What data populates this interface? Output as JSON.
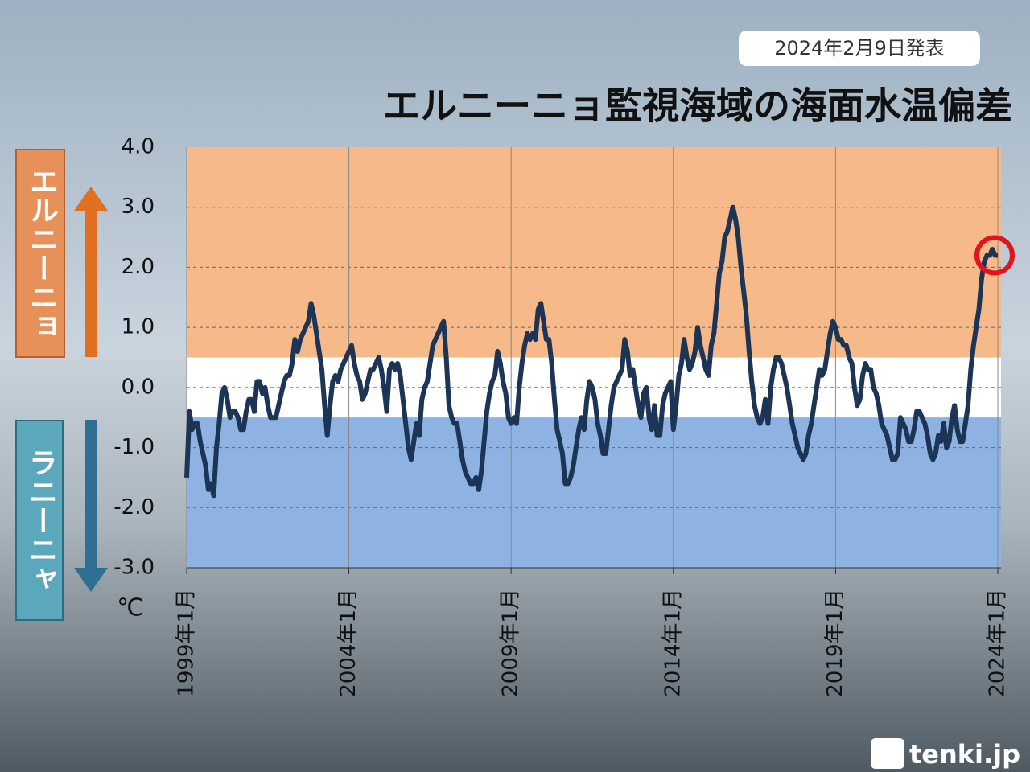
{
  "chart_data": {
    "type": "line",
    "title": "エルニーニョ監視海域の海面水温偏差",
    "subtitle": "2024年2月9日発表",
    "y_unit": "℃",
    "side_labels": {
      "upper": "エルニーニョ",
      "lower": "ラニーニャ"
    },
    "logo": "tenki.jp",
    "x": [
      "1999-01",
      "1999-02",
      "1999-03",
      "1999-04",
      "1999-05",
      "1999-06",
      "1999-07",
      "1999-08",
      "1999-09",
      "1999-10",
      "1999-11",
      "1999-12",
      "2000-01",
      "2000-02",
      "2000-03",
      "2000-04",
      "2000-05",
      "2000-06",
      "2000-07",
      "2000-08",
      "2000-09",
      "2000-10",
      "2000-11",
      "2000-12",
      "2001-01",
      "2001-02",
      "2001-03",
      "2001-04",
      "2001-05",
      "2001-06",
      "2001-07",
      "2001-08",
      "2001-09",
      "2001-10",
      "2001-11",
      "2001-12",
      "2002-01",
      "2002-02",
      "2002-03",
      "2002-04",
      "2002-05",
      "2002-06",
      "2002-07",
      "2002-08",
      "2002-09",
      "2002-10",
      "2002-11",
      "2002-12",
      "2003-01",
      "2003-02",
      "2003-03",
      "2003-04",
      "2003-05",
      "2003-06",
      "2003-07",
      "2003-08",
      "2003-09",
      "2003-10",
      "2003-11",
      "2003-12",
      "2004-01",
      "2004-02",
      "2004-03",
      "2004-04",
      "2004-05",
      "2004-06",
      "2004-07",
      "2004-08",
      "2004-09",
      "2004-10",
      "2004-11",
      "2004-12",
      "2005-01",
      "2005-02",
      "2005-03",
      "2005-04",
      "2005-05",
      "2005-06",
      "2005-07",
      "2005-08",
      "2005-09",
      "2005-10",
      "2005-11",
      "2005-12",
      "2006-01",
      "2006-02",
      "2006-03",
      "2006-04",
      "2006-05",
      "2006-06",
      "2006-07",
      "2006-08",
      "2006-09",
      "2006-10",
      "2006-11",
      "2006-12",
      "2007-01",
      "2007-02",
      "2007-03",
      "2007-04",
      "2007-05",
      "2007-06",
      "2007-07",
      "2007-08",
      "2007-09",
      "2007-10",
      "2007-11",
      "2007-12",
      "2008-01",
      "2008-02",
      "2008-03",
      "2008-04",
      "2008-05",
      "2008-06",
      "2008-07",
      "2008-08",
      "2008-09",
      "2008-10",
      "2008-11",
      "2008-12",
      "2009-01",
      "2009-02",
      "2009-03",
      "2009-04",
      "2009-05",
      "2009-06",
      "2009-07",
      "2009-08",
      "2009-09",
      "2009-10",
      "2009-11",
      "2009-12",
      "2010-01",
      "2010-02",
      "2010-03",
      "2010-04",
      "2010-05",
      "2010-06",
      "2010-07",
      "2010-08",
      "2010-09",
      "2010-10",
      "2010-11",
      "2010-12",
      "2011-01",
      "2011-02",
      "2011-03",
      "2011-04",
      "2011-05",
      "2011-06",
      "2011-07",
      "2011-08",
      "2011-09",
      "2011-10",
      "2011-11",
      "2011-12",
      "2012-01",
      "2012-02",
      "2012-03",
      "2012-04",
      "2012-05",
      "2012-06",
      "2012-07",
      "2012-08",
      "2012-09",
      "2012-10",
      "2012-11",
      "2012-12",
      "2013-01",
      "2013-02",
      "2013-03",
      "2013-04",
      "2013-05",
      "2013-06",
      "2013-07",
      "2013-08",
      "2013-09",
      "2013-10",
      "2013-11",
      "2013-12",
      "2014-01",
      "2014-02",
      "2014-03",
      "2014-04",
      "2014-05",
      "2014-06",
      "2014-07",
      "2014-08",
      "2014-09",
      "2014-10",
      "2014-11",
      "2014-12",
      "2015-01",
      "2015-02",
      "2015-03",
      "2015-04",
      "2015-05",
      "2015-06",
      "2015-07",
      "2015-08",
      "2015-09",
      "2015-10",
      "2015-11",
      "2015-12",
      "2016-01",
      "2016-02",
      "2016-03",
      "2016-04",
      "2016-05",
      "2016-06",
      "2016-07",
      "2016-08",
      "2016-09",
      "2016-10",
      "2016-11",
      "2016-12",
      "2017-01",
      "2017-02",
      "2017-03",
      "2017-04",
      "2017-05",
      "2017-06",
      "2017-07",
      "2017-08",
      "2017-09",
      "2017-10",
      "2017-11",
      "2017-12",
      "2018-01",
      "2018-02",
      "2018-03",
      "2018-04",
      "2018-05",
      "2018-06",
      "2018-07",
      "2018-08",
      "2018-09",
      "2018-10",
      "2018-11",
      "2018-12",
      "2019-01",
      "2019-02",
      "2019-03",
      "2019-04",
      "2019-05",
      "2019-06",
      "2019-07",
      "2019-08",
      "2019-09",
      "2019-10",
      "2019-11",
      "2019-12",
      "2020-01",
      "2020-02",
      "2020-03",
      "2020-04",
      "2020-05",
      "2020-06",
      "2020-07",
      "2020-08",
      "2020-09",
      "2020-10",
      "2020-11",
      "2020-12",
      "2021-01",
      "2021-02",
      "2021-03",
      "2021-04",
      "2021-05",
      "2021-06",
      "2021-07",
      "2021-08",
      "2021-09",
      "2021-10",
      "2021-11",
      "2021-12",
      "2022-01",
      "2022-02",
      "2022-03",
      "2022-04",
      "2022-05",
      "2022-06",
      "2022-07",
      "2022-08",
      "2022-09",
      "2022-10",
      "2022-11",
      "2022-12",
      "2023-01",
      "2023-02",
      "2023-03",
      "2023-04",
      "2023-05",
      "2023-06",
      "2023-07",
      "2023-08",
      "2023-09",
      "2023-10",
      "2023-11",
      "2023-12",
      "2024-01"
    ],
    "series": [
      {
        "color": "#1c3557",
        "values": [
          -1.5,
          -0.4,
          -0.7,
          -0.6,
          -0.6,
          -0.9,
          -1.1,
          -1.3,
          -1.7,
          -1.6,
          -1.8,
          -1.0,
          -0.6,
          -0.1,
          0.0,
          -0.2,
          -0.5,
          -0.4,
          -0.4,
          -0.5,
          -0.7,
          -0.7,
          -0.4,
          -0.2,
          -0.2,
          -0.4,
          0.1,
          0.1,
          -0.1,
          0.0,
          -0.3,
          -0.5,
          -0.5,
          -0.5,
          -0.3,
          -0.1,
          0.1,
          0.2,
          0.2,
          0.4,
          0.8,
          0.6,
          0.8,
          0.9,
          1.0,
          1.1,
          1.4,
          1.2,
          0.9,
          0.6,
          0.3,
          -0.3,
          -0.8,
          -0.3,
          0.1,
          0.2,
          0.1,
          0.3,
          0.4,
          0.5,
          0.6,
          0.7,
          0.4,
          0.2,
          0.1,
          -0.2,
          -0.1,
          0.1,
          0.3,
          0.3,
          0.4,
          0.5,
          0.3,
          0.0,
          -0.4,
          0.3,
          0.4,
          0.3,
          0.4,
          0.2,
          -0.2,
          -0.6,
          -1.0,
          -1.2,
          -0.9,
          -0.6,
          -0.8,
          -0.2,
          0.0,
          0.1,
          0.4,
          0.7,
          0.8,
          0.9,
          1.0,
          1.1,
          0.5,
          -0.3,
          -0.5,
          -0.6,
          -0.6,
          -0.9,
          -1.2,
          -1.4,
          -1.5,
          -1.6,
          -1.6,
          -1.5,
          -1.7,
          -1.4,
          -0.9,
          -0.4,
          -0.1,
          0.1,
          0.2,
          0.6,
          0.4,
          0.1,
          -0.1,
          -0.5,
          -0.6,
          -0.5,
          -0.6,
          0.0,
          0.4,
          0.7,
          0.9,
          0.8,
          0.9,
          0.8,
          1.3,
          1.4,
          1.1,
          0.8,
          0.8,
          0.4,
          -0.2,
          -0.7,
          -0.9,
          -1.1,
          -1.6,
          -1.6,
          -1.5,
          -1.3,
          -1.0,
          -0.7,
          -0.5,
          -0.7,
          -0.2,
          0.1,
          0.0,
          -0.2,
          -0.6,
          -0.8,
          -1.1,
          -1.1,
          -0.7,
          -0.3,
          0.0,
          0.1,
          0.2,
          0.3,
          0.8,
          0.6,
          0.2,
          0.3,
          0.0,
          -0.3,
          -0.5,
          -0.1,
          0.0,
          -0.5,
          -0.7,
          -0.3,
          -0.8,
          -0.8,
          -0.3,
          -0.1,
          0.0,
          0.1,
          -0.7,
          -0.3,
          0.2,
          0.4,
          0.8,
          0.5,
          0.3,
          0.4,
          0.6,
          1.0,
          0.7,
          0.5,
          0.3,
          0.2,
          0.7,
          0.9,
          1.4,
          1.9,
          2.1,
          2.5,
          2.6,
          2.8,
          3.0,
          2.8,
          2.5,
          2.0,
          1.6,
          1.2,
          0.6,
          0.1,
          -0.3,
          -0.5,
          -0.6,
          -0.5,
          -0.2,
          -0.6,
          0.0,
          0.3,
          0.5,
          0.5,
          0.4,
          0.2,
          0.0,
          -0.3,
          -0.6,
          -0.8,
          -1.0,
          -1.1,
          -1.2,
          -1.1,
          -0.8,
          -0.6,
          -0.3,
          0.0,
          0.3,
          0.2,
          0.3,
          0.6,
          0.9,
          1.1,
          1.0,
          0.8,
          0.8,
          0.7,
          0.7,
          0.5,
          0.4,
          0.0,
          -0.3,
          -0.2,
          0.2,
          0.4,
          0.3,
          0.3,
          0.0,
          -0.1,
          -0.3,
          -0.6,
          -0.7,
          -0.8,
          -1.0,
          -1.2,
          -1.2,
          -1.1,
          -0.5,
          -0.6,
          -0.7,
          -0.9,
          -0.9,
          -0.7,
          -0.4,
          -0.4,
          -0.5,
          -0.6,
          -0.8,
          -1.1,
          -1.2,
          -1.1,
          -0.8,
          -0.9,
          -0.6,
          -1.0,
          -0.9,
          -0.5,
          -0.3,
          -0.7,
          -0.9,
          -0.9,
          -0.6,
          -0.3,
          0.3,
          0.7,
          1.0,
          1.3,
          1.8,
          2.1,
          2.2,
          2.2,
          2.3,
          2.2,
          2.2
        ]
      }
    ],
    "xlim": [
      "1999-01",
      "2024-01"
    ],
    "xticks": [
      {
        "value": "1999-01",
        "label": "1999年1月"
      },
      {
        "value": "2004-01",
        "label": "2004年1月"
      },
      {
        "value": "2009-01",
        "label": "2009年1月"
      },
      {
        "value": "2014-01",
        "label": "2014年1月"
      },
      {
        "value": "2019-01",
        "label": "2019年1月"
      },
      {
        "value": "2024-01",
        "label": "2024年1月"
      }
    ],
    "ylim": [
      -3,
      4
    ],
    "yticks": [
      {
        "value": 4,
        "label": "4.0"
      },
      {
        "value": 3,
        "label": "3.0"
      },
      {
        "value": 2,
        "label": "2.0"
      },
      {
        "value": 1,
        "label": "1.0"
      },
      {
        "value": 0,
        "label": "0.0"
      },
      {
        "value": -1,
        "label": "-1.0"
      },
      {
        "value": -2,
        "label": "-2.0"
      },
      {
        "value": -3,
        "label": "-3.0"
      }
    ],
    "bands": [
      {
        "from": 0.5,
        "to": 4,
        "color": "#f6b98a"
      },
      {
        "from": -0.5,
        "to": 0.5,
        "color": "#ffffff"
      },
      {
        "from": -3,
        "to": -0.5,
        "color": "#8eb3e3"
      }
    ],
    "grid": true,
    "highlight_color": "#e0141e"
  }
}
